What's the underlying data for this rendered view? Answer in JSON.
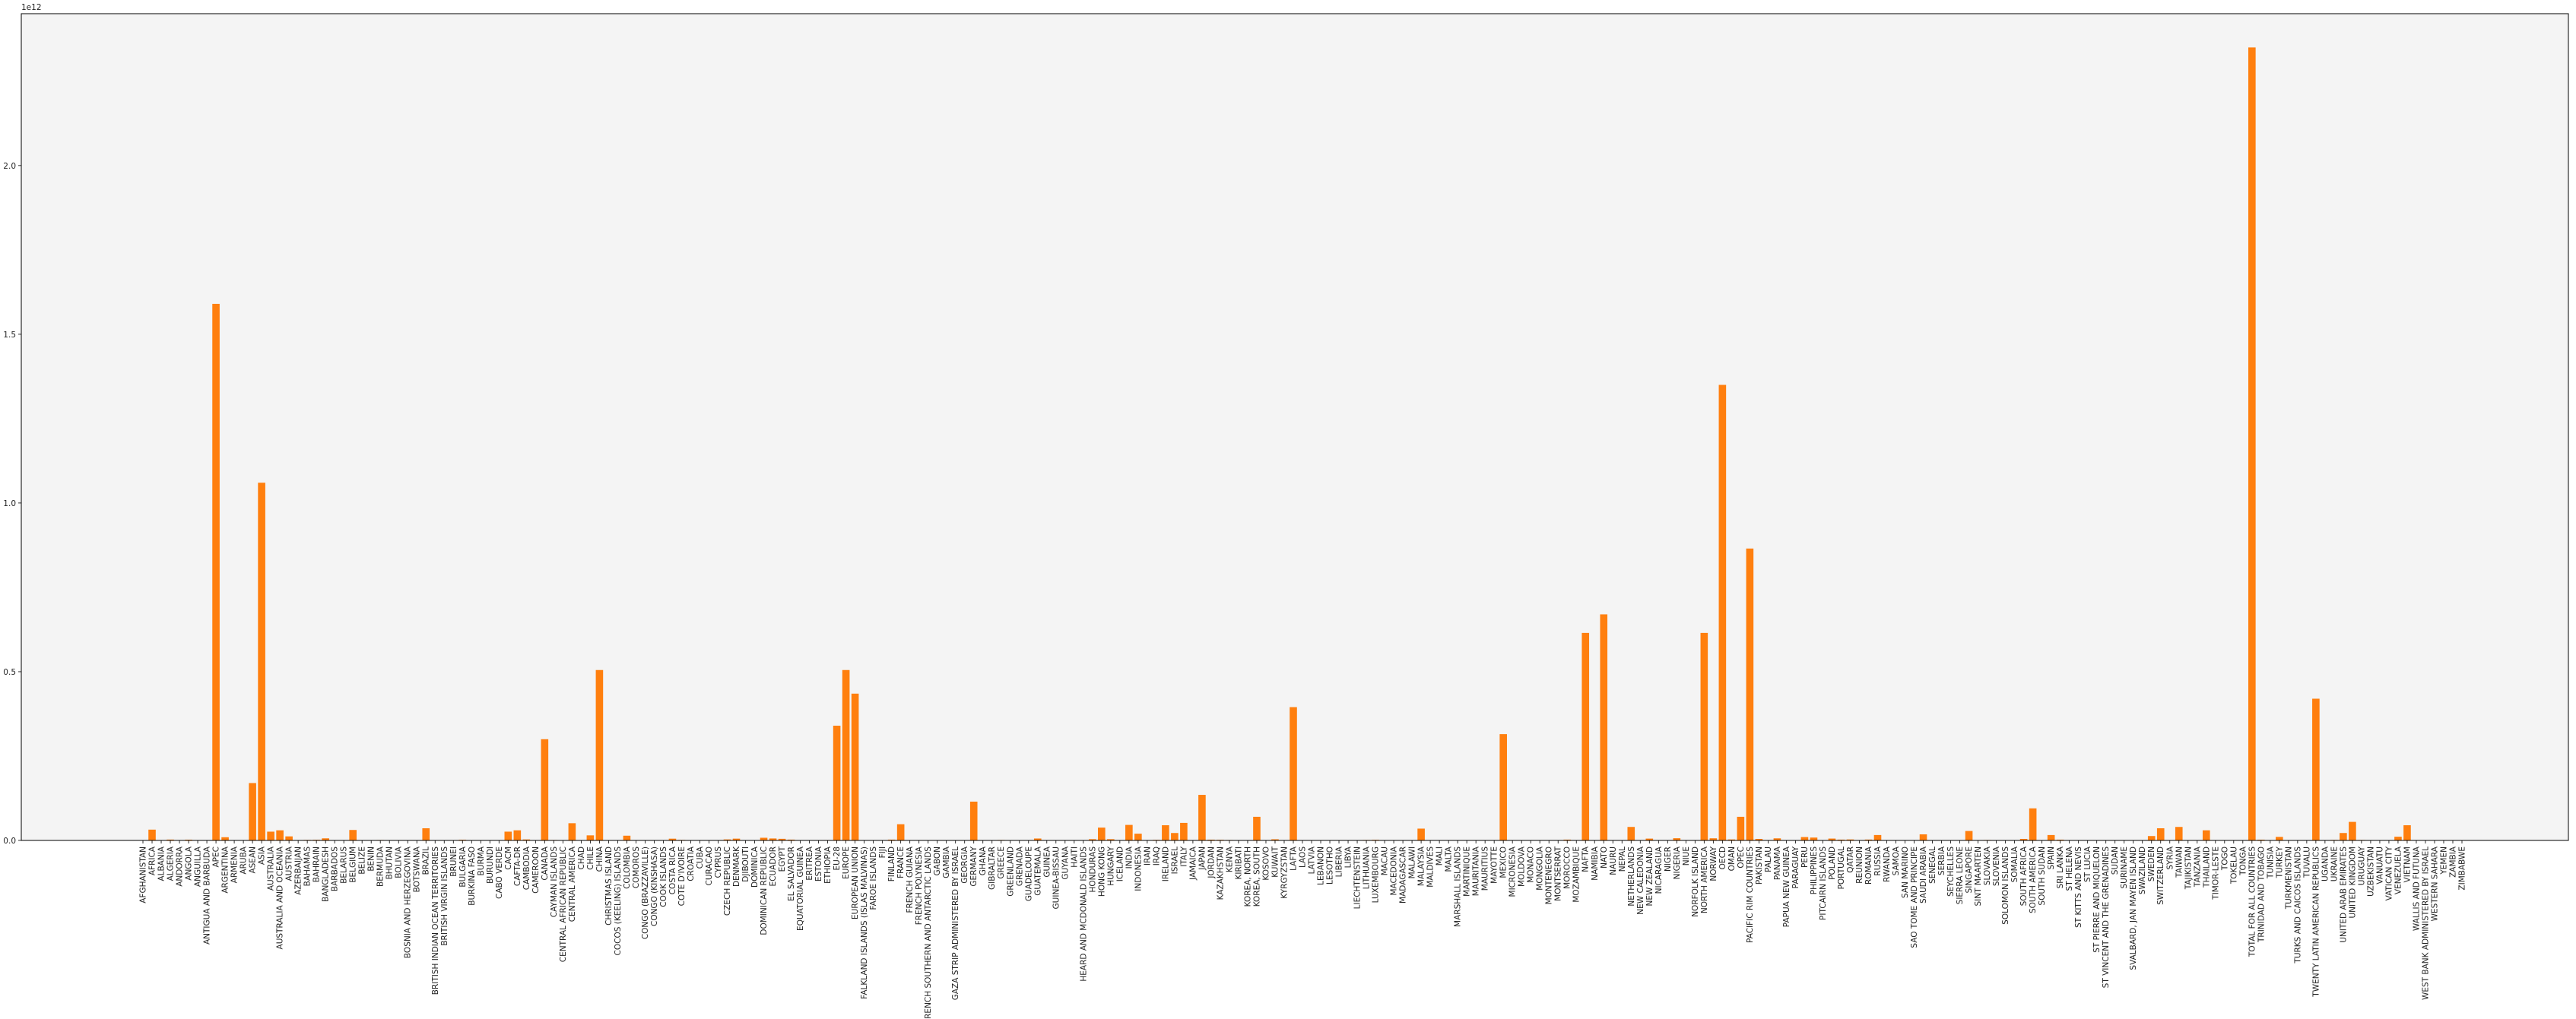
{
  "chart_data": {
    "type": "bar",
    "title": "",
    "xlabel": "",
    "ylabel": "",
    "y_offset_label": "1e12",
    "y_tick_labels": [
      "0.0",
      "0.5",
      "1.0",
      "1.5",
      "2.0"
    ],
    "y_ticks": [
      0,
      0.5,
      1.0,
      1.5,
      2.0
    ],
    "ylim": [
      0,
      2.45
    ],
    "grid": false,
    "bar_color": "#ff7f0e",
    "plot_background": "#f4f4f4",
    "categories": [
      "AFGHANISTAN",
      "AFRICA",
      "ALBANIA",
      "ALGERIA",
      "ANDORRA",
      "ANGOLA",
      "ANGUILLA",
      "ANTIGUA AND BARBUDA",
      "APEC",
      "ARGENTINA",
      "ARMENIA",
      "ARUBA",
      "ASEAN",
      "ASIA",
      "AUSTRALIA",
      "AUSTRALIA AND OCEANIA",
      "AUSTRIA",
      "AZERBAIJAN",
      "BAHAMAS",
      "BAHRAIN",
      "BANGLADESH",
      "BARBADOS",
      "BELARUS",
      "BELGIUM",
      "BELIZE",
      "BENIN",
      "BERMUDA",
      "BHUTAN",
      "BOLIVIA",
      "BOSNIA AND HERZEGOVINA",
      "BOTSWANA",
      "BRAZIL",
      "BRITISH INDIAN OCEAN TERRITORIES",
      "BRITISH VIRGIN ISLANDS",
      "BRUNEI",
      "BULGARIA",
      "BURKINA FASO",
      "BURMA",
      "BURUNDI",
      "CABO VERDE",
      "CACM",
      "CAFTA-DR",
      "CAMBODIA",
      "CAMEROON",
      "CANADA",
      "CAYMAN ISLANDS",
      "CENTRAL AFRICAN REPUBLIC",
      "CENTRAL AMERICA",
      "CHAD",
      "CHILE",
      "CHINA",
      "CHRISTMAS ISLAND",
      "COCOS (KEELING) ISLANDS",
      "COLOMBIA",
      "COMOROS",
      "CONGO (BRAZZAVILLE)",
      "CONGO (KINSHASA)",
      "COOK ISLANDS",
      "COSTA RICA",
      "COTE D'IVOIRE",
      "CROATIA",
      "CUBA",
      "CURACAO",
      "CYPRUS",
      "CZECH REPUBLIC",
      "DENMARK",
      "DJIBOUTI",
      "DOMINICA",
      "DOMINICAN REPUBLIC",
      "ECUADOR",
      "EGYPT",
      "EL SALVADOR",
      "EQUATORIAL GUINEA",
      "ERITREA",
      "ESTONIA",
      "ETHIOPIA",
      "EU-28",
      "EUROPE",
      "EUROPEAN UNION",
      "FALKLAND ISLANDS (ISLAS MALVINAS)",
      "FAROE ISLANDS",
      "FIJI",
      "FINLAND",
      "FRANCE",
      "FRENCH GUIANA",
      "FRENCH POLYNESIA",
      "FRENCH SOUTHERN AND ANTARCTIC LANDS",
      "GABON",
      "GAMBIA",
      "GAZA STRIP ADMINISTERED BY ISRAEL",
      "GEORGIA",
      "GERMANY",
      "GHANA",
      "GIBRALTAR",
      "GREECE",
      "GREENLAND",
      "GRENADA",
      "GUADELOUPE",
      "GUATEMALA",
      "GUINEA",
      "GUINEA-BISSAU",
      "GUYANA",
      "HAITI",
      "HEARD AND MCDONALD ISLANDS",
      "HONDURAS",
      "HONG KONG",
      "HUNGARY",
      "ICELAND",
      "INDIA",
      "INDONESIA",
      "IRAN",
      "IRAQ",
      "IRELAND",
      "ISRAEL",
      "ITALY",
      "JAMAICA",
      "JAPAN",
      "JORDAN",
      "KAZAKHSTAN",
      "KENYA",
      "KIRIBATI",
      "KOREA, NORTH",
      "KOREA, SOUTH",
      "KOSOVO",
      "KUWAIT",
      "KYRGYZSTAN",
      "LAFTA",
      "LAOS",
      "LATVIA",
      "LEBANON",
      "LESOTHO",
      "LIBERIA",
      "LIBYA",
      "LIECHTENSTEIN",
      "LITHUANIA",
      "LUXEMBOURG",
      "MACAU",
      "MACEDONIA",
      "MADAGASCAR",
      "MALAWI",
      "MALAYSIA",
      "MALDIVES",
      "MALI",
      "MALTA",
      "MARSHALL ISLANDS",
      "MARTINIQUE",
      "MAURITANIA",
      "MAURITIUS",
      "MAYOTTE",
      "MEXICO",
      "MICRONESIA",
      "MOLDOVA",
      "MONACO",
      "MONGOLIA",
      "MONTENEGRO",
      "MONTSERRAT",
      "MOROCCO",
      "MOZAMBIQUE",
      "NAFTA",
      "NAMIBIA",
      "NATO",
      "NAURU",
      "NEPAL",
      "NETHERLANDS",
      "NEW CALEDONIA",
      "NEW ZEALAND",
      "NICARAGUA",
      "NIGER",
      "NIGERIA",
      "NIUE",
      "NORFOLK ISLAND",
      "NORTH AMERICA",
      "NORWAY",
      "OECD",
      "OMAN",
      "OPEC",
      "PACIFIC RIM COUNTRIES",
      "PAKISTAN",
      "PALAU",
      "PANAMA",
      "PAPUA NEW GUINEA",
      "PARAGUAY",
      "PERU",
      "PHILIPPINES",
      "PITCAIRN ISLANDS",
      "POLAND",
      "PORTUGAL",
      "QATAR",
      "REUNION",
      "ROMANIA",
      "RUSSIA",
      "RWANDA",
      "SAMOA",
      "SAN MARINO",
      "SAO TOME AND PRINCIPE",
      "SAUDI ARABIA",
      "SENEGAL",
      "SERBIA",
      "SEYCHELLES",
      "SIERRA LEONE",
      "SINGAPORE",
      "SINT MAARTEN",
      "SLOVAKIA",
      "SLOVENIA",
      "SOLOMON ISLANDS",
      "SOMALIA",
      "SOUTH AFRICA",
      "SOUTH AMERICA",
      "SOUTH SUDAN",
      "SPAIN",
      "SRI LANKA",
      "ST HELENA",
      "ST KITTS AND NEVIS",
      "ST LUCIA",
      "ST PIERRE AND MIQUELON",
      "ST VINCENT AND THE GRENADINES",
      "SUDAN",
      "SURINAME",
      "SVALBARD, JAN MAYEN ISLAND",
      "SWAZILAND",
      "SWEDEN",
      "SWITZERLAND",
      "SYRIA",
      "TAIWAN",
      "TAJIKISTAN",
      "TANZANIA",
      "THAILAND",
      "TIMOR-LESTE",
      "TOGO",
      "TOKELAU",
      "TONGA",
      "TOTAL FOR ALL COUNTRIES",
      "TRINIDAD AND TOBAGO",
      "TUNISIA",
      "TURKEY",
      "TURKMENISTAN",
      "TURKS AND CAICOS ISLANDS",
      "TUVALU",
      "TWENTY LATIN AMERICAN REPUBLICS",
      "UGANDA",
      "UKRAINE",
      "UNITED ARAB EMIRATES",
      "UNITED KINGDOM",
      "URUGUAY",
      "UZBEKISTAN",
      "VANUATU",
      "VATICAN CITY",
      "VENEZUELA",
      "VIETNAM",
      "WALLIS AND FUTUNA",
      "WEST BANK ADMINISTERED BY ISRAEL",
      "WESTERN SAHARA",
      "YEMEN",
      "ZAMBIA",
      "ZIMBABWE"
    ],
    "values": [
      0.0003,
      0.032,
      0.0005,
      0.0025,
      0.0001,
      0.0022,
      0.0001,
      0.0003,
      1.59,
      0.0095,
      0.0002,
      0.0004,
      0.17,
      1.06,
      0.026,
      0.03,
      0.012,
      0.001,
      0.0015,
      0.0019,
      0.0062,
      0.0005,
      0.0008,
      0.031,
      0.0003,
      0.0005,
      0.0013,
      0.0001,
      0.0008,
      0.0003,
      0.0004,
      0.036,
      0.0001,
      0.0002,
      0.0007,
      0.002,
      0.0003,
      0.0001,
      0.0001,
      0.0001,
      0.026,
      0.03,
      0.0029,
      0.001,
      0.3,
      0.0013,
      0.0001,
      0.051,
      0.0001,
      0.015,
      0.505,
      0.0001,
      0.0001,
      0.014,
      0.0001,
      0.0002,
      0.0004,
      0.0001,
      0.0052,
      0.0015,
      0.0005,
      0.0002,
      0.0008,
      0.0002,
      0.003,
      0.0053,
      0.0002,
      0.0002,
      0.0079,
      0.0058,
      0.0048,
      0.0024,
      0.0003,
      0.0001,
      0.0005,
      0.0012,
      0.34,
      0.505,
      0.435,
      0.0001,
      0.0001,
      0.0002,
      0.0024,
      0.048,
      0.0003,
      0.0002,
      0.0001,
      0.0002,
      0.0001,
      0.0001,
      0.0005,
      0.115,
      0.0009,
      0.0001,
      0.0014,
      0.0001,
      0.0001,
      0.0002,
      0.0057,
      0.0001,
      0.0001,
      0.0006,
      0.0011,
      0.0001,
      0.0037,
      0.038,
      0.0037,
      0.0002,
      0.046,
      0.02,
      0.0002,
      0.0017,
      0.045,
      0.022,
      0.052,
      0.0009,
      0.135,
      0.0023,
      0.0019,
      0.0013,
      0.0001,
      0.0001,
      0.07,
      0.0001,
      0.0034,
      0.0002,
      0.395,
      0.0001,
      0.0005,
      0.0008,
      0.0001,
      0.0002,
      0.0007,
      0.0004,
      0.0014,
      0.0019,
      0.0007,
      0.0001,
      0.0001,
      0.0001,
      0.035,
      0.0001,
      0.0001,
      0.0002,
      0.0001,
      0.0001,
      0.0001,
      0.0001,
      0.0001,
      0.315,
      0.0001,
      0.0001,
      0.0001,
      0.0001,
      0.0001,
      0.0001,
      0.0024,
      0.0001,
      0.615,
      0.0002,
      0.67,
      0.0001,
      0.0001,
      0.04,
      0.0001,
      0.0054,
      0.0008,
      0.0001,
      0.0065,
      0.0001,
      0.0001,
      0.615,
      0.0063,
      1.35,
      0.0029,
      0.07,
      0.865,
      0.0045,
      0.0001,
      0.0062,
      0.0002,
      0.0005,
      0.01,
      0.0085,
      0.0001,
      0.0055,
      0.0024,
      0.0029,
      0.0001,
      0.0026,
      0.016,
      0.0001,
      0.0001,
      0.0001,
      0.0001,
      0.018,
      0.0002,
      0.0002,
      0.0001,
      0.0001,
      0.028,
      0.0001,
      0.0014,
      0.0006,
      0.0001,
      0.0001,
      0.0045,
      0.095,
      0.0001,
      0.016,
      0.0023,
      0.0001,
      0.0001,
      0.0001,
      0.0001,
      0.0001,
      0.0001,
      0.0001,
      0.0001,
      0.0001,
      0.013,
      0.036,
      0.0002,
      0.04,
      0.0001,
      0.0006,
      0.03,
      0.0001,
      0.0001,
      0.0001,
      0.0001,
      2.35,
      0.0022,
      0.0009,
      0.0105,
      0.0001,
      0.0001,
      0.0001,
      0.42,
      0.0002,
      0.0015,
      0.022,
      0.055,
      0.0014,
      0.0001,
      0.0001,
      0.0001,
      0.011,
      0.045,
      0.0001,
      0.0001,
      0.0001,
      0.0001,
      0.0003,
      0.0001
    ]
  }
}
